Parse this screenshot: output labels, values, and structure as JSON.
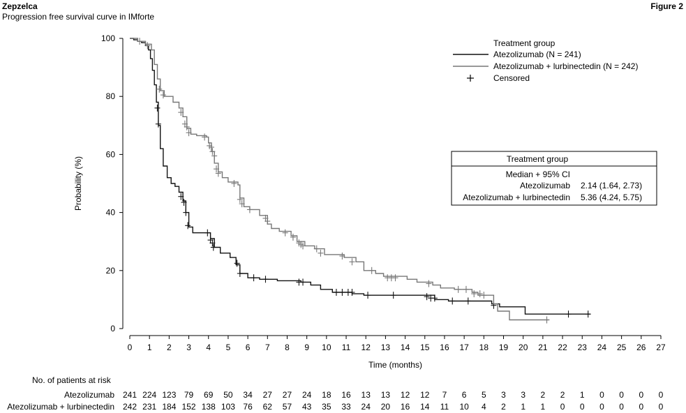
{
  "header": {
    "brand": "Zepzelca",
    "subtitle": "Progression free survival curve in IMforte",
    "figure_label": "Figure 2"
  },
  "chart_data": {
    "type": "line",
    "kind": "kaplan-meier",
    "xlabel": "Time (months)",
    "ylabel": "Probability (%)",
    "xlim": [
      0,
      27
    ],
    "ylim": [
      0,
      100
    ],
    "xticks": [
      0,
      1,
      2,
      3,
      4,
      5,
      6,
      7,
      8,
      9,
      10,
      11,
      12,
      13,
      14,
      15,
      16,
      17,
      18,
      19,
      20,
      21,
      22,
      23,
      24,
      25,
      26,
      27
    ],
    "yticks": [
      0,
      20,
      40,
      60,
      80,
      100
    ],
    "grid": false,
    "legend": {
      "title": "Treatment group",
      "placement": "top-right",
      "censored_label": "Censored"
    },
    "series": [
      {
        "name": "Atezolizumab (N = 241)",
        "color": "#111111",
        "points": [
          [
            0,
            100
          ],
          [
            0.2,
            99.5
          ],
          [
            0.4,
            99
          ],
          [
            0.6,
            98.5
          ],
          [
            0.8,
            97.5
          ],
          [
            0.95,
            96
          ],
          [
            1.05,
            93
          ],
          [
            1.15,
            89
          ],
          [
            1.25,
            84
          ],
          [
            1.35,
            78
          ],
          [
            1.45,
            70
          ],
          [
            1.55,
            62
          ],
          [
            1.7,
            56
          ],
          [
            1.9,
            52
          ],
          [
            2.1,
            50
          ],
          [
            2.3,
            49
          ],
          [
            2.5,
            47
          ],
          [
            2.7,
            44
          ],
          [
            2.85,
            40
          ],
          [
            3.0,
            35
          ],
          [
            3.2,
            33
          ],
          [
            4.1,
            31
          ],
          [
            4.3,
            28
          ],
          [
            4.6,
            26
          ],
          [
            5.1,
            24.5
          ],
          [
            5.4,
            22
          ],
          [
            5.6,
            19
          ],
          [
            6.0,
            17.5
          ],
          [
            6.6,
            17
          ],
          [
            7.5,
            16.5
          ],
          [
            8.7,
            16
          ],
          [
            9.2,
            15
          ],
          [
            9.7,
            13.5
          ],
          [
            10.3,
            12.5
          ],
          [
            11.3,
            12
          ],
          [
            11.9,
            11.5
          ],
          [
            15.1,
            11.5
          ],
          [
            15.5,
            10
          ],
          [
            16.2,
            9.5
          ],
          [
            18.4,
            8.5
          ],
          [
            18.8,
            7.5
          ],
          [
            20.1,
            5
          ],
          [
            23.4,
            5
          ]
        ],
        "censored": [
          [
            1.4,
            76
          ],
          [
            1.45,
            70.5
          ],
          [
            2.6,
            45.5
          ],
          [
            2.75,
            43.5
          ],
          [
            2.85,
            40
          ],
          [
            2.95,
            35.5
          ],
          [
            3.95,
            33
          ],
          [
            4.1,
            30.5
          ],
          [
            4.2,
            29.5
          ],
          [
            4.25,
            28
          ],
          [
            5.45,
            22.5
          ],
          [
            5.6,
            19
          ],
          [
            6.3,
            17.5
          ],
          [
            6.9,
            17
          ],
          [
            8.6,
            16
          ],
          [
            8.8,
            16
          ],
          [
            10.5,
            12.5
          ],
          [
            10.8,
            12.5
          ],
          [
            11.1,
            12.5
          ],
          [
            11.3,
            12.5
          ],
          [
            12.1,
            11.5
          ],
          [
            13.4,
            11.5
          ],
          [
            15.1,
            11
          ],
          [
            15.3,
            10.5
          ],
          [
            15.5,
            10.5
          ],
          [
            16.4,
            9.5
          ],
          [
            17.2,
            9.5
          ],
          [
            18.5,
            8
          ],
          [
            22.3,
            5
          ],
          [
            23.3,
            5
          ]
        ]
      },
      {
        "name": "Atezolizumab + lurbinectedin (N = 242)",
        "color": "#777777",
        "points": [
          [
            0,
            100
          ],
          [
            0.4,
            99
          ],
          [
            0.8,
            98
          ],
          [
            1.1,
            96
          ],
          [
            1.25,
            91
          ],
          [
            1.4,
            86
          ],
          [
            1.55,
            82
          ],
          [
            1.75,
            80
          ],
          [
            2.2,
            78
          ],
          [
            2.5,
            76
          ],
          [
            2.7,
            73
          ],
          [
            2.9,
            69
          ],
          [
            3.1,
            67
          ],
          [
            3.4,
            66.5
          ],
          [
            3.9,
            66
          ],
          [
            4.0,
            64
          ],
          [
            4.15,
            61
          ],
          [
            4.3,
            57
          ],
          [
            4.5,
            54
          ],
          [
            4.7,
            52
          ],
          [
            5.0,
            50.5
          ],
          [
            5.5,
            49.5
          ],
          [
            5.6,
            45
          ],
          [
            5.8,
            42
          ],
          [
            6.1,
            41
          ],
          [
            6.6,
            39
          ],
          [
            7.0,
            36
          ],
          [
            7.2,
            34.5
          ],
          [
            7.6,
            33.5
          ],
          [
            8.2,
            32
          ],
          [
            8.5,
            30
          ],
          [
            8.9,
            28.5
          ],
          [
            9.4,
            27.5
          ],
          [
            9.9,
            25.5
          ],
          [
            10.9,
            24.5
          ],
          [
            11.5,
            23
          ],
          [
            11.9,
            20
          ],
          [
            12.5,
            19
          ],
          [
            12.9,
            18
          ],
          [
            14.1,
            17
          ],
          [
            14.6,
            16
          ],
          [
            15.4,
            15
          ],
          [
            15.8,
            14
          ],
          [
            16.5,
            13.5
          ],
          [
            17.4,
            12.5
          ],
          [
            17.7,
            11.5
          ],
          [
            18.5,
            8.5
          ],
          [
            18.7,
            6
          ],
          [
            19.3,
            3
          ],
          [
            21.3,
            3
          ]
        ],
        "censored": [
          [
            0.5,
            99
          ],
          [
            0.9,
            97.5
          ],
          [
            1.5,
            82.5
          ],
          [
            1.7,
            80.5
          ],
          [
            2.6,
            74.5
          ],
          [
            2.8,
            70.5
          ],
          [
            2.9,
            69.5
          ],
          [
            3.0,
            67.5
          ],
          [
            3.8,
            66
          ],
          [
            4.05,
            63
          ],
          [
            4.15,
            62.5
          ],
          [
            4.2,
            61
          ],
          [
            4.3,
            59.5
          ],
          [
            4.4,
            55
          ],
          [
            4.5,
            53.5
          ],
          [
            5.3,
            50
          ],
          [
            5.6,
            44.5
          ],
          [
            5.7,
            43
          ],
          [
            6.1,
            41
          ],
          [
            6.9,
            38
          ],
          [
            7.0,
            37
          ],
          [
            7.9,
            33
          ],
          [
            8.3,
            31.5
          ],
          [
            8.6,
            29.5
          ],
          [
            8.7,
            29
          ],
          [
            8.8,
            28.5
          ],
          [
            9.5,
            27.5
          ],
          [
            9.7,
            26
          ],
          [
            10.8,
            25
          ],
          [
            11.3,
            23
          ],
          [
            12.3,
            20
          ],
          [
            13.1,
            17.5
          ],
          [
            13.3,
            17.5
          ],
          [
            13.5,
            17.5
          ],
          [
            15.2,
            15.5
          ],
          [
            16.7,
            13.5
          ],
          [
            17.1,
            13.5
          ],
          [
            17.5,
            12
          ],
          [
            17.8,
            12
          ],
          [
            18.0,
            11.5
          ],
          [
            21.2,
            3
          ]
        ]
      }
    ],
    "stats_box": {
      "title": "Treatment group",
      "subtitle": "Median + 95% CI",
      "rows": [
        {
          "label": "Atezolizumab",
          "value": "2.14 (1.64, 2.73)"
        },
        {
          "label": "Atezolizumab + lurbinectedin",
          "value": "5.36 (4.24, 5.75)"
        }
      ]
    },
    "at_risk": {
      "title": "No. of patients at risk",
      "rows": [
        {
          "label": "Atezolizumab",
          "values": [
            241,
            224,
            123,
            79,
            69,
            50,
            34,
            27,
            27,
            24,
            18,
            16,
            13,
            13,
            12,
            12,
            7,
            6,
            5,
            3,
            3,
            2,
            2,
            1,
            0,
            0,
            0,
            0
          ]
        },
        {
          "label": "Atezolizumab + lurbinectedin",
          "values": [
            242,
            231,
            184,
            152,
            138,
            103,
            76,
            62,
            57,
            43,
            35,
            33,
            24,
            20,
            16,
            14,
            11,
            10,
            4,
            2,
            1,
            1,
            0,
            0,
            0,
            0,
            0,
            0
          ]
        }
      ]
    }
  }
}
